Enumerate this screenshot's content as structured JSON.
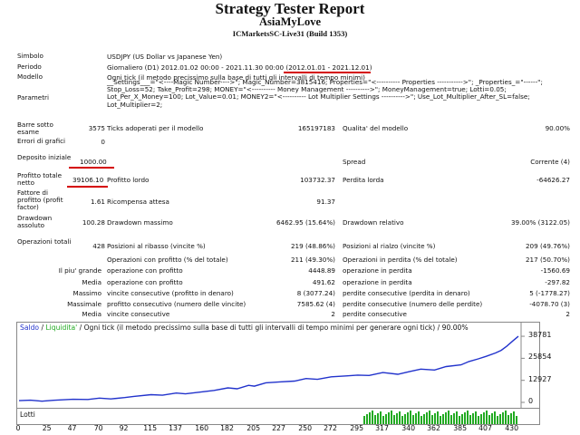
{
  "header": {
    "title": "Strategy Tester Report",
    "expert": "AsiaMyLove",
    "server": "ICMarketsSC-Live31 (Build 1353)"
  },
  "info": {
    "symbol_label": "Simbolo",
    "symbol": "USDJPY (US Dollar vs Japanese Yen)",
    "period_label": "Periodo",
    "period": "Giornaliero (D1) 2012.01.02 00:00 - 2021.11.30 00:00",
    "period_range": "(2012.01.01 - 2021.12.01)",
    "model_label": "Modello",
    "model": "Ogni tick (il metodo precissimo sulla base di tutti gli intervalli di tempo minimi)",
    "params_label": "Parametri",
    "params": "__Settings___=\"<----Magic Number---->\"; Magic_Number=3815416; Properties=\"<---------- Properties ----------->\"; _Properties_=\"------\"; Stop_Loss=52; Take_Profit=298; MONEY=\"<---------- Money Management ---------->\"; MoneyManagement=true; Lotti=0.05; Lot_Per_X_Money=100; Lot_Value=0.01; MONEY2=\"<---------- Lot Multiplier Settings ---------->\"; Use_Lot_Multiplier_After_SL=false; Lot_Multiplier=2;"
  },
  "stats": {
    "bars_label": "Barre sotto esame",
    "bars": "3575",
    "ticks_label": "Ticks adoperati per il modello",
    "ticks": "165197183",
    "quality_label": "Qualita' del modello",
    "quality": "90.00%",
    "errors_label": "Errori di grafici",
    "errors": "0",
    "deposit_label": "Deposito iniziale",
    "deposit": "1000.00",
    "spread_label": "Spread",
    "spread": "Corrente (4)",
    "net_label": "Profitto totale netto",
    "net": "39106.10",
    "gross_profit_label": "Profitto lordo",
    "gross_profit": "103732.37",
    "gross_loss_label": "Perdita lorda",
    "gross_loss": "-64626.27",
    "pf_label": "Fattore di profitto (profit factor)",
    "pf": "1.61",
    "expected_label": "Ricompensa attesa",
    "expected": "91.37",
    "dd_abs_label": "Drawdown assoluto",
    "dd_abs": "100.28",
    "dd_max_label": "Drawdown massimo",
    "dd_max": "6462.95 (15.64%)",
    "dd_rel_label": "Drawdown relativo",
    "dd_rel": "39.00% (3122.05)",
    "trades_label": "Operazioni totali",
    "trades": "428",
    "short_label": "Posizioni al ribasso (vincite %)",
    "short": "219 (48.86%)",
    "long_label": "Posizioni al rialzo (vincite %)",
    "long": "209 (49.76%)",
    "win_label": "Operazioni con profitto (% del totale)",
    "win": "211 (49.30%)",
    "loss_label": "Operazioni in perdita (% del totale)",
    "loss": "217 (50.70%)",
    "largest_label": "Il piu' grande",
    "largest_win_label": "operazione con profitto",
    "largest_win": "4448.89",
    "largest_loss_label": "operazione in perdita",
    "largest_loss": "-1560.69",
    "avg_label": "Media",
    "avg_win_label": "operazione con profitto",
    "avg_win": "491.62",
    "avg_loss_label": "operazione in perdita",
    "avg_loss": "-297.82",
    "max_label": "Massimo",
    "max_cw_label": "vincite consecutive (profitto in denaro)",
    "max_cw": "8 (3077.24)",
    "max_cl_label": "perdite consecutive (perdita in denaro)",
    "max_cl": "5 (-1778.27)",
    "maximal_label": "Massimale",
    "maximal_cw_label": "profitto consecutivo (numero delle vincite)",
    "maximal_cw": "7585.62 (4)",
    "maximal_cl_label": "perdite consecutive (numero delle perdite)",
    "maximal_cl": "-4078.70 (3)",
    "media_label": "Media",
    "media_cw_label": "vincite consecutive",
    "media_cw": "2",
    "media_cl_label": "perdite consecutive",
    "media_cl": "2"
  },
  "graph": {
    "legend_saldo": "Saldo",
    "legend_sep1": " / ",
    "legend_liq": "Liquidita'",
    "legend_rest": " / Ogni tick (il metodo precissimo sulla base di tutti gli intervalli di tempo minimi per generare ogni tick) / 90.00%",
    "lots_label": "Lotti",
    "saldo_color": "#2233cc",
    "liq_color": "#22aa22"
  },
  "chart_data": {
    "type": "line",
    "title": "",
    "xlabel": "",
    "ylabel": "",
    "x_ticks": [
      "0",
      "25",
      "47",
      "70",
      "92",
      "115",
      "137",
      "160",
      "182",
      "205",
      "227",
      "250",
      "272",
      "295",
      "317",
      "340",
      "362",
      "385",
      "407",
      "430"
    ],
    "y_ticks": [
      "38781",
      "25854",
      "12927",
      "0"
    ],
    "xlim": [
      0,
      435
    ],
    "ylim": [
      0,
      42000
    ],
    "series": [
      {
        "name": "Saldo",
        "x": [
          0,
          10,
          20,
          30,
          47,
          60,
          70,
          80,
          92,
          100,
          115,
          125,
          137,
          145,
          160,
          170,
          182,
          190,
          200,
          205,
          215,
          227,
          240,
          250,
          260,
          272,
          285,
          295,
          305,
          317,
          330,
          340,
          350,
          362,
          372,
          385,
          392,
          400,
          407,
          415,
          420,
          425,
          430,
          435
        ],
        "values": [
          1000,
          1300,
          700,
          1200,
          1800,
          1700,
          2500,
          2000,
          2800,
          3500,
          4500,
          4200,
          5500,
          5000,
          6200,
          7000,
          8500,
          8000,
          10000,
          9500,
          11500,
          12000,
          12500,
          14000,
          13500,
          15000,
          15500,
          16000,
          15800,
          17500,
          16500,
          18000,
          19500,
          19000,
          21000,
          22000,
          24000,
          25500,
          27000,
          29000,
          30500,
          33000,
          36000,
          38781
        ]
      }
    ],
    "lots": {
      "name": "Lotti",
      "x_start": 300,
      "x_end": 435
    }
  }
}
